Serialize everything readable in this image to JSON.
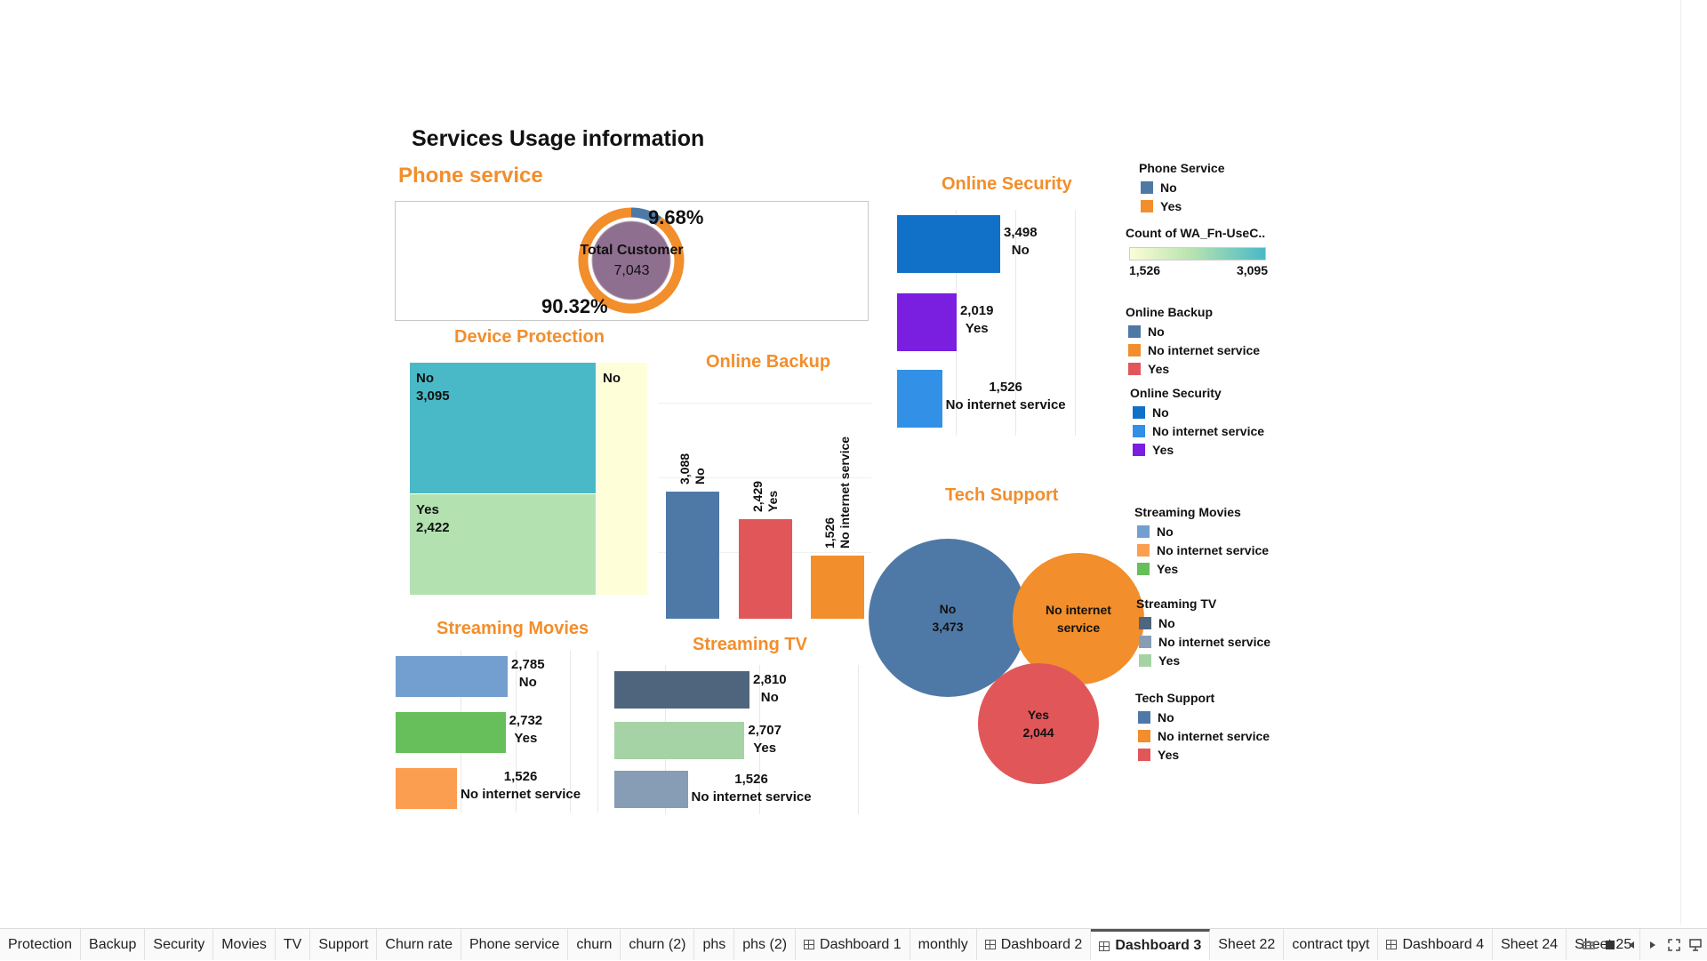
{
  "dashboard": {
    "title": "Services Usage information"
  },
  "phone_service": {
    "title": "Phone service",
    "center_label": "Total Customer",
    "center_value": "7,043",
    "pct_no": "9.68%",
    "pct_yes": "90.32%",
    "colors": {
      "No": "#4e79a7",
      "Yes": "#f28e2b",
      "center": "#8f6f8f"
    }
  },
  "device_protection": {
    "title": "Device Protection",
    "cells": [
      {
        "label": "No",
        "value": "3,095",
        "color": "#4ab9c7"
      },
      {
        "label": "Yes",
        "value": "2,422",
        "color": "#b3e2b0"
      },
      {
        "label": "No",
        "value": "",
        "color": "#fefed8"
      }
    ]
  },
  "online_backup": {
    "title": "Online Backup",
    "bars": [
      {
        "value": "3,088",
        "label": "No",
        "num": 3088,
        "color": "#4e79a7"
      },
      {
        "value": "2,429",
        "label": "Yes",
        "num": 2429,
        "color": "#e15759"
      },
      {
        "value": "1,526",
        "label": "No internet service",
        "num": 1526,
        "color": "#f28e2b"
      }
    ]
  },
  "online_security": {
    "title": "Online Security",
    "bars": [
      {
        "value": "3,498",
        "label": "No",
        "num": 3498,
        "color": "#1170c8"
      },
      {
        "value": "2,019",
        "label": "Yes",
        "num": 2019,
        "color": "#7a1ee0"
      },
      {
        "value": "1,526",
        "label": "No internet service",
        "num": 1526,
        "color": "#3290e6"
      }
    ]
  },
  "streaming_movies": {
    "title": "Streaming Movies",
    "bars": [
      {
        "value": "2,785",
        "label": "No",
        "num": 2785,
        "color": "#729fcf"
      },
      {
        "value": "2,732",
        "label": "Yes",
        "num": 2732,
        "color": "#66bf5a"
      },
      {
        "value": "1,526",
        "label": "No internet service",
        "num": 1526,
        "color": "#fc9e4f"
      }
    ]
  },
  "streaming_tv": {
    "title": "Streaming TV",
    "bars": [
      {
        "value": "2,810",
        "label": "No",
        "num": 2810,
        "color": "#4f657e"
      },
      {
        "value": "2,707",
        "label": "Yes",
        "num": 2707,
        "color": "#a5d3a5"
      },
      {
        "value": "1,526",
        "label": "No internet service",
        "num": 1526,
        "color": "#879db5"
      }
    ]
  },
  "tech_support": {
    "title": "Tech Support",
    "bubbles": [
      {
        "label": "No",
        "value": "3,473",
        "num": 3473,
        "color": "#4e79a7"
      },
      {
        "label": "No internet service",
        "value": "",
        "num": 1526,
        "color": "#f28e2b"
      },
      {
        "label": "Yes",
        "value": "2,044",
        "num": 2044,
        "color": "#e15759"
      }
    ]
  },
  "legends": {
    "phone_service": {
      "title": "Phone Service",
      "items": [
        {
          "label": "No",
          "color": "#4e79a7"
        },
        {
          "label": "Yes",
          "color": "#f28e2b"
        }
      ]
    },
    "count": {
      "title": "Count of WA_Fn-UseC..",
      "min": "1,526",
      "max": "3,095"
    },
    "online_backup": {
      "title": "Online Backup",
      "items": [
        {
          "label": "No",
          "color": "#4e79a7"
        },
        {
          "label": "No internet service",
          "color": "#f28e2b"
        },
        {
          "label": "Yes",
          "color": "#e15759"
        }
      ]
    },
    "online_security": {
      "title": "Online Security",
      "items": [
        {
          "label": "No",
          "color": "#1170c8"
        },
        {
          "label": "No internet service",
          "color": "#3290e6"
        },
        {
          "label": "Yes",
          "color": "#7a1ee0"
        }
      ]
    },
    "streaming_movies": {
      "title": "Streaming Movies",
      "items": [
        {
          "label": "No",
          "color": "#729fcf"
        },
        {
          "label": "No internet service",
          "color": "#fc9e4f"
        },
        {
          "label": "Yes",
          "color": "#66bf5a"
        }
      ]
    },
    "streaming_tv": {
      "title": "Streaming TV",
      "items": [
        {
          "label": "No",
          "color": "#4f657e"
        },
        {
          "label": "No internet service",
          "color": "#879db5"
        },
        {
          "label": "Yes",
          "color": "#a5d3a5"
        }
      ]
    },
    "tech_support": {
      "title": "Tech Support",
      "items": [
        {
          "label": "No",
          "color": "#4e79a7"
        },
        {
          "label": "No internet service",
          "color": "#f28e2b"
        },
        {
          "label": "Yes",
          "color": "#e15759"
        }
      ]
    }
  },
  "tabs": [
    {
      "label": "Protection",
      "dashboard": false,
      "active": false
    },
    {
      "label": "Backup",
      "dashboard": false,
      "active": false
    },
    {
      "label": "Security",
      "dashboard": false,
      "active": false
    },
    {
      "label": "Movies",
      "dashboard": false,
      "active": false
    },
    {
      "label": "TV",
      "dashboard": false,
      "active": false
    },
    {
      "label": "Support",
      "dashboard": false,
      "active": false
    },
    {
      "label": "Churn rate",
      "dashboard": false,
      "active": false
    },
    {
      "label": "Phone service",
      "dashboard": false,
      "active": false
    },
    {
      "label": "churn",
      "dashboard": false,
      "active": false
    },
    {
      "label": "churn (2)",
      "dashboard": false,
      "active": false
    },
    {
      "label": "phs",
      "dashboard": false,
      "active": false
    },
    {
      "label": "phs (2)",
      "dashboard": false,
      "active": false
    },
    {
      "label": "Dashboard 1",
      "dashboard": true,
      "active": false
    },
    {
      "label": "monthly",
      "dashboard": false,
      "active": false
    },
    {
      "label": "Dashboard 2",
      "dashboard": true,
      "active": false
    },
    {
      "label": "Dashboard 3",
      "dashboard": true,
      "active": true
    },
    {
      "label": "Sheet 22",
      "dashboard": false,
      "active": false
    },
    {
      "label": "contract tpyt",
      "dashboard": false,
      "active": false
    },
    {
      "label": "Dashboard 4",
      "dashboard": true,
      "active": false
    },
    {
      "label": "Sheet 24",
      "dashboard": false,
      "active": false
    },
    {
      "label": "Sheet 25",
      "dashboard": false,
      "active": false
    }
  ],
  "nav_icons": [
    "filmstrip-view-icon",
    "tab-view-icon",
    "prev-sheet-icon",
    "next-sheet-icon",
    "fullscreen-icon",
    "presentation-icon"
  ]
}
